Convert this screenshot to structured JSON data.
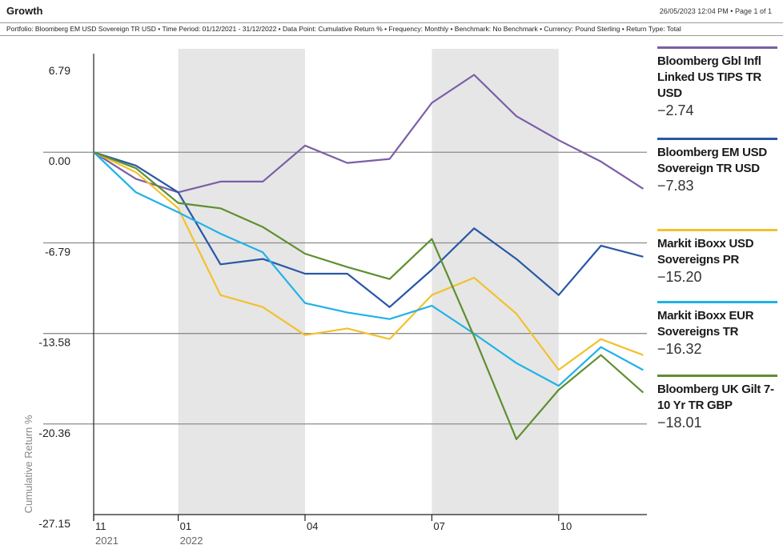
{
  "header": {
    "title": "Growth",
    "meta": "26/05/2023 12:04 PM • Page 1 of 1",
    "subtitle": "Portfolio: Bloomberg EM USD Sovereign TR USD • Time Period: 01/12/2021 - 31/12/2022 • Data Point: Cumulative Return % • Frequency: Monthly • Benchmark: No Benchmark • Currency: Pound Sterling • Return Type: Total"
  },
  "colors": {
    "purple": "#7b5ea7",
    "navy": "#2a57a5",
    "gold": "#f2c12e",
    "cyan": "#1fb2e8",
    "green": "#5e8f2f",
    "shade": "#e6e6e6"
  },
  "chart_data": {
    "type": "line",
    "ylabel": "Cumulative Return %",
    "y_ticks": [
      "6.79",
      "0.00",
      "-6.79",
      "-13.58",
      "-20.36",
      "-27.15"
    ],
    "y_tick_values": [
      6.79,
      0.0,
      -6.79,
      -13.58,
      -20.36,
      -27.15
    ],
    "ylim": [
      -27.15,
      6.79
    ],
    "x": [
      "2021-11",
      "2021-12",
      "2022-01",
      "2022-02",
      "2022-03",
      "2022-04",
      "2022-05",
      "2022-06",
      "2022-07",
      "2022-08",
      "2022-09",
      "2022-10",
      "2022-11",
      "2022-12"
    ],
    "x_tick_labels": [
      {
        "month": "11",
        "year": "2021",
        "x": "2021-11"
      },
      {
        "month": "01",
        "year": "2022",
        "x": "2022-01"
      },
      {
        "month": "04",
        "year": "",
        "x": "2022-04"
      },
      {
        "month": "07",
        "year": "",
        "x": "2022-07"
      },
      {
        "month": "10",
        "year": "",
        "x": "2022-10"
      }
    ],
    "shaded_periods": [
      [
        "2022-01",
        "2022-04"
      ],
      [
        "2022-07",
        "2022-10"
      ]
    ],
    "grid": true,
    "legend_position": "right",
    "series": [
      {
        "name": "Bloomberg Gbl Infl Linked US TIPS TR USD",
        "value_label": "−2.74",
        "color": "purple",
        "values": [
          0.0,
          -2.0,
          -3.0,
          -2.2,
          -2.2,
          0.5,
          -0.8,
          -0.5,
          3.7,
          5.8,
          2.7,
          0.9,
          -0.7,
          -2.74
        ]
      },
      {
        "name": "Bloomberg EM USD Sovereign TR USD",
        "value_label": "−7.83",
        "color": "navy",
        "values": [
          0.0,
          -1.0,
          -3.0,
          -8.4,
          -8.0,
          -9.1,
          -9.1,
          -11.6,
          -8.8,
          -5.7,
          -8.0,
          -10.7,
          -7.0,
          -7.83
        ]
      },
      {
        "name": "Markit iBoxx USD Sovereigns PR",
        "value_label": "−15.20",
        "color": "gold",
        "values": [
          0.0,
          -1.5,
          -4.2,
          -10.7,
          -11.6,
          -13.7,
          -13.2,
          -14.0,
          -10.7,
          -9.4,
          -12.1,
          -16.3,
          -14.0,
          -15.2
        ]
      },
      {
        "name": "Markit iBoxx EUR Sovereigns TR",
        "value_label": "−16.32",
        "color": "cyan",
        "values": [
          0.0,
          -3.0,
          -4.5,
          -6.1,
          -7.5,
          -11.3,
          -12.0,
          -12.5,
          -11.5,
          -13.6,
          -15.8,
          -17.5,
          -14.6,
          -16.32
        ]
      },
      {
        "name": "Bloomberg UK Gilt 7-10 Yr TR GBP",
        "value_label": "−18.01",
        "color": "green",
        "values": [
          0.0,
          -1.2,
          -3.8,
          -4.2,
          -5.6,
          -7.6,
          -8.6,
          -9.5,
          -6.5,
          -13.8,
          -21.5,
          -17.8,
          -15.2,
          -18.01
        ]
      }
    ]
  }
}
